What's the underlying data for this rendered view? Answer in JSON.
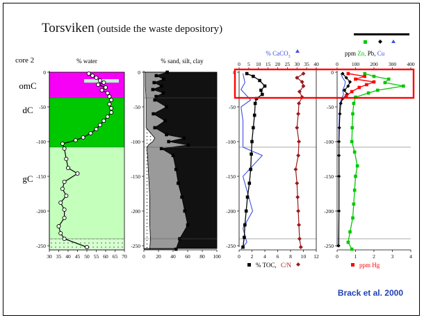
{
  "slide": {
    "title_main": "Torsviken",
    "title_sub": "(outside the waste depository)",
    "citation": "Brack et al. 2000"
  },
  "colors": {
    "magenta": "#f600f6",
    "green": "#00c800",
    "pale_green": "#c4ffbc",
    "black": "#000000",
    "blue": "#3a4fe0",
    "darkred": "#9a1a1a",
    "red": "#ff0000",
    "grid": "#555555",
    "dots": "#d8ffd2"
  },
  "chart_data": [
    {
      "type": "line",
      "id": "water",
      "core_label": "core 2",
      "title": "% water",
      "xlim": [
        30,
        70
      ],
      "xticks": [
        30,
        35,
        40,
        45,
        50,
        55,
        60,
        65,
        70
      ],
      "ylim": [
        0,
        250
      ],
      "yticks": [
        0,
        -50,
        -100,
        -150,
        -200,
        -250
      ],
      "zones": [
        {
          "name": "omC",
          "from": 0,
          "to": -37
        },
        {
          "name": "dC",
          "from": -37,
          "to": -108
        },
        {
          "name": "gC",
          "from": -108,
          "to": -240
        }
      ],
      "series": [
        {
          "depth": [
            -2,
            -5,
            -8,
            -12,
            -15,
            -18,
            -22,
            -26,
            -30,
            -35,
            -40,
            -46,
            -52,
            -58,
            -64,
            -70,
            -76,
            -82,
            -88,
            -94,
            -98,
            -103,
            -110,
            -125,
            -138,
            -146,
            -158,
            -168,
            -178,
            -188,
            -198,
            -210,
            -222,
            -232,
            -240,
            -252
          ],
          "values": [
            51,
            53,
            55,
            57,
            59,
            56,
            60,
            58,
            61,
            62,
            63,
            62,
            63,
            63,
            61,
            59,
            57,
            55,
            52,
            48,
            44,
            37,
            38,
            39,
            40,
            45,
            38,
            37,
            39,
            36,
            38,
            38,
            35,
            36,
            38,
            50
          ]
        }
      ]
    },
    {
      "type": "area",
      "id": "grain",
      "title": "% sand, silt, clay",
      "xlim": [
        0,
        100
      ],
      "xticks": [
        0,
        20,
        40,
        60,
        80,
        100
      ],
      "ylim": [
        0,
        250
      ],
      "yticks": [
        0,
        -50,
        -100,
        -150,
        -200,
        -250
      ],
      "series": [
        {
          "name": "sand",
          "depth": [
            0,
            -20,
            -40,
            -60,
            -80,
            -95,
            -100,
            -105,
            -110,
            -120,
            -140,
            -160,
            -180,
            -200,
            -220,
            -240,
            -255
          ],
          "values": [
            2,
            2,
            3,
            3,
            3,
            15,
            12,
            6,
            4,
            5,
            6,
            7,
            8,
            8,
            8,
            9,
            8
          ]
        },
        {
          "name": "silt",
          "depth": [
            0,
            -5,
            -10,
            -15,
            -20,
            -25,
            -30,
            -35,
            -40,
            -50,
            -60,
            -70,
            -80,
            -90,
            -95,
            -100,
            -105,
            -110,
            -120,
            -140,
            -160,
            -180,
            -200,
            -220,
            -240,
            -255
          ],
          "values": [
            30,
            15,
            25,
            12,
            22,
            10,
            24,
            14,
            12,
            28,
            10,
            26,
            12,
            20,
            40,
            22,
            55,
            20,
            35,
            38,
            40,
            44,
            48,
            52,
            40,
            36
          ]
        }
      ]
    },
    {
      "type": "line",
      "id": "toc",
      "title": "% CaCO3",
      "legend_bottom": [
        "% TOC,",
        "C/N"
      ],
      "xlim_bottom": [
        0,
        12
      ],
      "xticks_bottom": [
        0,
        2,
        4,
        6,
        8,
        10,
        12
      ],
      "xlim_top": [
        0,
        40
      ],
      "xticks_top": [
        0,
        5,
        10,
        15,
        20,
        25,
        30,
        35,
        40
      ],
      "ylim": [
        0,
        250
      ],
      "yticks": [
        0,
        -50,
        -100,
        -150,
        -200,
        -250
      ],
      "series": [
        {
          "name": "% TOC",
          "depth": [
            -2,
            -6,
            -12,
            -20,
            -26,
            -32,
            -38,
            -45,
            -62,
            -80,
            -100,
            -118,
            -140,
            -160,
            -180,
            -200,
            -220,
            -238,
            -252
          ],
          "values": [
            1.2,
            2.2,
            3.2,
            4.0,
            3.4,
            3.6,
            2.7,
            2.5,
            2.4,
            2.2,
            2.0,
            1.9,
            1.8,
            1.6,
            1.3,
            1.1,
            0.9,
            0.8,
            0.6
          ]
        },
        {
          "name": "C/N",
          "depth": [
            -2,
            -8,
            -14,
            -20,
            -28,
            -36,
            -45,
            -60,
            -80,
            -100,
            -120,
            -140,
            -160,
            -180,
            -200,
            -220,
            -240,
            -252
          ],
          "values": [
            10.0,
            9.0,
            9.8,
            10.0,
            9.4,
            9.8,
            9.3,
            9.2,
            9.0,
            9.3,
            9.2,
            8.8,
            9.0,
            9.1,
            9.2,
            9.3,
            9.4,
            9.6
          ]
        },
        {
          "name": "% CaCO3",
          "depth": [
            -2,
            -15,
            -25,
            -40,
            -50,
            -70,
            -108,
            -120,
            -150,
            -170,
            -200,
            -225,
            -245,
            -255
          ],
          "values": [
            2,
            3,
            1,
            6,
            1,
            2,
            2,
            12,
            2,
            4,
            7,
            2,
            4,
            1
          ]
        }
      ]
    },
    {
      "type": "line",
      "id": "metals",
      "title_prefix": "ppm",
      "metals": [
        "Zn,",
        "Pb,",
        "Cu"
      ],
      "legend_bottom": "ppm Hg",
      "xlim_top": [
        0,
        400
      ],
      "xticks_top": [
        0,
        100,
        200,
        300,
        400
      ],
      "xlim_bottom": [
        0,
        4
      ],
      "xticks_bottom": [
        0,
        1,
        2,
        3,
        4
      ],
      "ylim": [
        0,
        250
      ],
      "yticks": [
        0,
        -50,
        -100,
        -150,
        -200,
        -250
      ],
      "series": [
        {
          "name": "Zn",
          "depth": [
            -2,
            -6,
            -10,
            -15,
            -20,
            -26,
            -30,
            -36,
            -45,
            -60,
            -80,
            -100,
            -115,
            -135,
            -150,
            -170,
            -190,
            -210,
            -230,
            -245,
            -255
          ],
          "values": [
            150,
            200,
            280,
            260,
            360,
            220,
            170,
            100,
            90,
            85,
            82,
            80,
            95,
            110,
            100,
            95,
            90,
            85,
            70,
            60,
            80
          ]
        },
        {
          "name": "Pb",
          "depth": [
            -2,
            -8,
            -14,
            -20,
            -26,
            -32,
            -38,
            -45,
            -60,
            -80,
            -100,
            -120,
            -150,
            -200,
            -250
          ],
          "values": [
            30,
            50,
            70,
            60,
            40,
            55,
            30,
            20,
            15,
            12,
            10,
            10,
            10,
            10,
            8
          ]
        },
        {
          "name": "Cu",
          "depth": [
            -2,
            -8,
            -14,
            -20,
            -26,
            -32,
            -38,
            -45,
            -60,
            -80,
            -100,
            -120,
            -150,
            -200,
            -250
          ],
          "values": [
            20,
            30,
            45,
            40,
            30,
            35,
            25,
            15,
            12,
            10,
            10,
            10,
            10,
            10,
            10
          ]
        },
        {
          "name": "Hg",
          "depth": [
            -2,
            -6,
            -10,
            -14,
            -18,
            -22,
            -28,
            -34
          ],
          "values": [
            0.6,
            1.5,
            1.0,
            2.0,
            1.6,
            1.2,
            0.8,
            0.5
          ]
        }
      ]
    }
  ]
}
